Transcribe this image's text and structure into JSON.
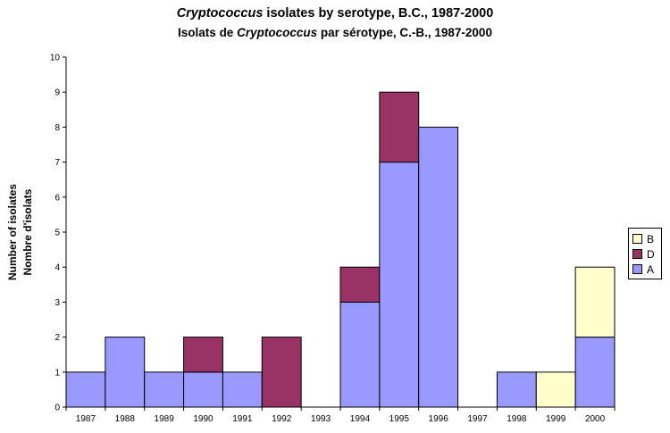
{
  "title": {
    "line1_italic": "Cryptococcus",
    "line1_rest": " isolates by serotype, B.C., 1987-2000",
    "line2_pre": "Isolats de ",
    "line2_italic": "Cryptococcus",
    "line2_post": " par sérotype, C.-B., 1987-2000"
  },
  "chart_data": {
    "type": "bar",
    "stacked": true,
    "categories": [
      "1987",
      "1988",
      "1989",
      "1990",
      "1991",
      "1992",
      "1993",
      "1994",
      "1995",
      "1996",
      "1997",
      "1998",
      "1999",
      "2000"
    ],
    "series": [
      {
        "name": "A",
        "color": "#9999ff",
        "values": [
          1,
          2,
          1,
          1,
          1,
          0,
          0,
          3,
          7,
          8,
          0,
          1,
          0,
          2
        ]
      },
      {
        "name": "D",
        "color": "#993366",
        "values": [
          0,
          0,
          0,
          1,
          0,
          2,
          0,
          1,
          2,
          0,
          0,
          0,
          0,
          0
        ]
      },
      {
        "name": "B",
        "color": "#ffffcc",
        "values": [
          0,
          0,
          0,
          0,
          0,
          0,
          0,
          0,
          0,
          0,
          0,
          0,
          1,
          2
        ]
      }
    ],
    "ylabel_line1": "Number of isolates",
    "ylabel_line2": "Nombre d'isolats",
    "ylim": [
      0,
      10
    ],
    "yticks": [
      "0",
      "1",
      "2",
      "3",
      "4",
      "5",
      "6",
      "7",
      "8",
      "9",
      "10"
    ],
    "legend_position": "right",
    "legend_order": [
      "B",
      "D",
      "A"
    ]
  }
}
